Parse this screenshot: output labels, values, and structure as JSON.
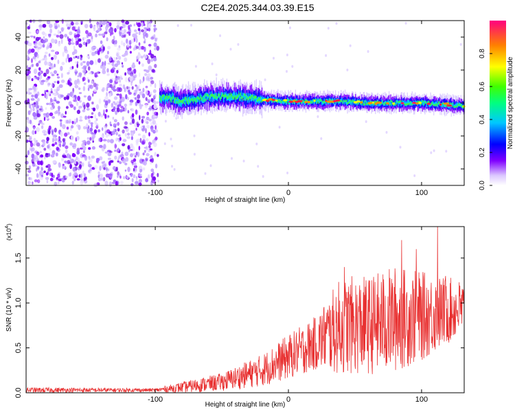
{
  "title": "C2E4.2025.344.03.39.E15",
  "chart_data": [
    {
      "type": "heatmap",
      "name": "spectrogram",
      "xlabel": "Height of straight line (km)",
      "ylabel": "Frequency (Hz)",
      "xlim": [
        -197,
        132
      ],
      "ylim": [
        -50,
        50
      ],
      "xticks": [
        -100,
        0,
        100
      ],
      "yticks": [
        -40,
        -20,
        0,
        20,
        40
      ],
      "noise_region_x": [
        -197,
        -98
      ],
      "signal_track": [
        {
          "x": -97,
          "y": 3
        },
        {
          "x": -90,
          "y": 3
        },
        {
          "x": -80,
          "y": 1
        },
        {
          "x": -70,
          "y": 2
        },
        {
          "x": -60,
          "y": 4
        },
        {
          "x": -50,
          "y": 4
        },
        {
          "x": -40,
          "y": 4
        },
        {
          "x": -30,
          "y": 3
        },
        {
          "x": -20,
          "y": 2
        },
        {
          "x": 0,
          "y": 1
        },
        {
          "x": 20,
          "y": 1
        },
        {
          "x": 40,
          "y": 1
        },
        {
          "x": 60,
          "y": 0
        },
        {
          "x": 80,
          "y": 0
        },
        {
          "x": 100,
          "y": 0
        },
        {
          "x": 120,
          "y": -1
        },
        {
          "x": 132,
          "y": -2
        }
      ],
      "colorbar": {
        "label": "Normalized spectral amplitude",
        "range": [
          0,
          1
        ],
        "ticks": [
          "0.0",
          "0.2",
          "0.4",
          "0.6",
          "0.8"
        ]
      }
    },
    {
      "type": "line",
      "name": "snr",
      "xlabel": "Height of straight line (km)",
      "ylabel": "SNR (10 * v/v)",
      "scale_label": "(x10",
      "scale_exp": "4",
      "scale_close": ")",
      "xlim": [
        -197,
        132
      ],
      "ylim": [
        0,
        1.85
      ],
      "xticks": [
        -100,
        0,
        100
      ],
      "yticks": [
        "0.0",
        "0.5",
        "1.0",
        "1.5"
      ],
      "color": "#e83030",
      "envelope": [
        {
          "x": -197,
          "mean": 0.03,
          "amp": 0.03
        },
        {
          "x": -100,
          "mean": 0.03,
          "amp": 0.02
        },
        {
          "x": -80,
          "mean": 0.06,
          "amp": 0.06
        },
        {
          "x": -50,
          "mean": 0.12,
          "amp": 0.1
        },
        {
          "x": -20,
          "mean": 0.25,
          "amp": 0.18
        },
        {
          "x": 0,
          "mean": 0.4,
          "amp": 0.25
        },
        {
          "x": 20,
          "mean": 0.55,
          "amp": 0.3
        },
        {
          "x": 40,
          "mean": 0.75,
          "amp": 0.55
        },
        {
          "x": 60,
          "mean": 0.75,
          "amp": 0.55
        },
        {
          "x": 80,
          "mean": 0.82,
          "amp": 0.6
        },
        {
          "x": 100,
          "mean": 0.85,
          "amp": 0.5
        },
        {
          "x": 132,
          "mean": 0.95,
          "amp": 0.3
        }
      ],
      "peaks": [
        {
          "x": 42,
          "y": 1.4
        },
        {
          "x": 85,
          "y": 1.7
        },
        {
          "x": 96,
          "y": 1.6
        },
        {
          "x": 112,
          "y": 1.85
        },
        {
          "x": 118,
          "y": 1.3
        }
      ]
    }
  ]
}
